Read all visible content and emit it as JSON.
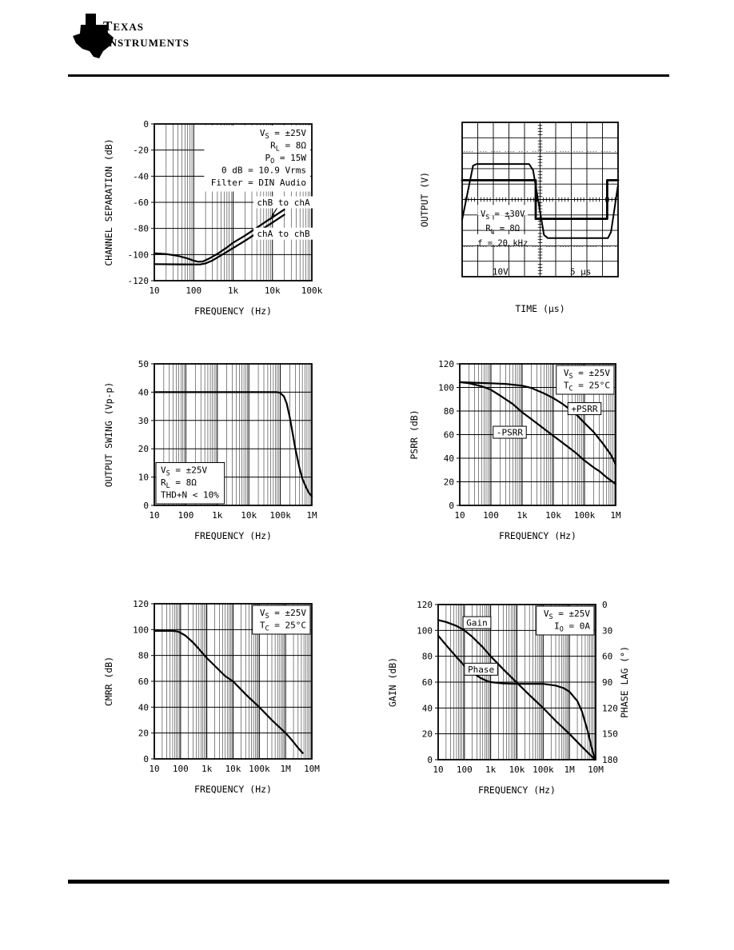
{
  "header": {
    "brand_line1": "TEXAS",
    "brand_line2": "INSTRUMENTS",
    "logo_monogram": "ti"
  },
  "chart_data": [
    {
      "type": "line",
      "x_scale": "log",
      "xlabel": "FREQUENCY (Hz)",
      "ylabel": "CHANNEL SEPARATION (dB)",
      "x_ticks": [
        "10",
        "100",
        "1k",
        "10k",
        "100k"
      ],
      "x_log_min": 1,
      "ylim": [
        -120,
        0
      ],
      "y_ticks": [
        0,
        -20,
        -40,
        -60,
        -80,
        -100,
        -120
      ],
      "annotations": {
        "pos": "top-right",
        "align": "right",
        "boxed": false,
        "lines": [
          "V~S~ = ±25V",
          "R~L~ = 8Ω",
          "P~O~ = 15W",
          "0 dB = 10.9 Vrms",
          "Filter = DIN Audio"
        ]
      },
      "series": [
        {
          "name": "chB to chA",
          "label": {
            "text": "chB to chA",
            "x": 19000,
            "y": -60,
            "boxed": false
          },
          "leader": [
            [
              14000,
              -63
            ],
            [
              9500,
              -71
            ]
          ],
          "points": [
            [
              10,
              -99
            ],
            [
              20,
              -99.6
            ],
            [
              40,
              -101
            ],
            [
              70,
              -103
            ],
            [
              100,
              -104.7
            ],
            [
              130,
              -105.5
            ],
            [
              170,
              -105.3
            ],
            [
              250,
              -103
            ],
            [
              400,
              -99.5
            ],
            [
              700,
              -94.5
            ],
            [
              1000,
              -91
            ],
            [
              2000,
              -85.5
            ],
            [
              4000,
              -79.5
            ],
            [
              7000,
              -74.5
            ],
            [
              10000,
              -71.5
            ],
            [
              15000,
              -68
            ],
            [
              20000,
              -65.5
            ]
          ]
        },
        {
          "name": "chA to chB",
          "label": {
            "text": "chA to chB",
            "x": 19000,
            "y": -84,
            "boxed": false
          },
          "leader": [
            [
              5200,
              -84
            ],
            [
              4200,
              -82.6
            ]
          ],
          "points": [
            [
              10,
              -107.3
            ],
            [
              50,
              -107.5
            ],
            [
              100,
              -107.6
            ],
            [
              150,
              -107.5
            ],
            [
              200,
              -106.8
            ],
            [
              300,
              -104.5
            ],
            [
              500,
              -100.5
            ],
            [
              1000,
              -95
            ],
            [
              2000,
              -89.5
            ],
            [
              4000,
              -83.5
            ],
            [
              7000,
              -78.5
            ],
            [
              10000,
              -75.5
            ],
            [
              15000,
              -72
            ],
            [
              20000,
              -69.5
            ]
          ]
        }
      ]
    },
    {
      "type": "scope",
      "xlabel": "TIME (μs)",
      "ylabel": "OUTPUT (V)",
      "divisions_x": 10,
      "divisions_y": 10,
      "dotted_rows_div": [
        1.9,
        8.05
      ],
      "annotations": {
        "lines": [
          "V~S~ = ±30V",
          "R~L~ = 8Ω",
          "f = 20 kHz"
        ]
      },
      "scale_labels": {
        "volt": "10V",
        "time": "5 μs"
      },
      "traces": [
        {
          "name": "input-square-wave",
          "points": [
            [
              0,
              1.25
            ],
            [
              4.72,
              1.25
            ],
            [
              4.72,
              -1.25
            ],
            [
              9.3,
              -1.25
            ],
            [
              9.3,
              1.25
            ],
            [
              10,
              1.25
            ]
          ]
        },
        {
          "name": "output-waveform",
          "points": [
            [
              0,
              -1.3
            ],
            [
              0.7,
              2.2
            ],
            [
              0.95,
              2.3
            ],
            [
              4.3,
              2.3
            ],
            [
              4.55,
              1.9
            ],
            [
              5.25,
              -2.3
            ],
            [
              5.5,
              -2.5
            ],
            [
              9.35,
              -2.5
            ],
            [
              9.55,
              -2.1
            ],
            [
              10,
              0.95
            ]
          ]
        }
      ]
    },
    {
      "type": "line",
      "x_scale": "log",
      "xlabel": "FREQUENCY (Hz)",
      "ylabel": "OUTPUT SWING (Vp-p)",
      "x_ticks": [
        "10",
        "100",
        "1k",
        "10k",
        "100k",
        "1M"
      ],
      "x_log_min": 1,
      "ylim": [
        0,
        50
      ],
      "y_ticks": [
        50,
        40,
        30,
        20,
        10,
        0
      ],
      "annotations": {
        "pos": "bottom-left",
        "align": "left",
        "boxed": true,
        "lines": [
          "V~S~ = ±25V",
          "R~L~ = 8Ω",
          "THD+N < 10%"
        ]
      },
      "series": [
        {
          "name": "output-swing",
          "points": [
            [
              10,
              40
            ],
            [
              80000,
              40
            ],
            [
              100000,
              39.7
            ],
            [
              130000,
              38.5
            ],
            [
              160000,
              36
            ],
            [
              200000,
              31
            ],
            [
              250000,
              25
            ],
            [
              300000,
              20
            ],
            [
              400000,
              13.5
            ],
            [
              500000,
              9.5
            ],
            [
              650000,
              6.5
            ],
            [
              800000,
              4.5
            ],
            [
              1000000,
              3.2
            ]
          ]
        }
      ]
    },
    {
      "type": "line",
      "x_scale": "log",
      "xlabel": "FREQUENCY (Hz)",
      "ylabel": "PSRR (dB)",
      "x_ticks": [
        "10",
        "100",
        "1k",
        "10k",
        "100k",
        "1M"
      ],
      "x_log_min": 1,
      "ylim": [
        0,
        120
      ],
      "y_ticks": [
        120,
        100,
        80,
        60,
        40,
        20,
        0
      ],
      "annotations": {
        "pos": "top-right",
        "align": "right",
        "boxed": true,
        "lines": [
          "V~S~ = ±25V",
          "T~C~ = 25°C"
        ]
      },
      "series": [
        {
          "name": "+PSRR",
          "label": {
            "text": "+PSRR",
            "x": 100000,
            "y": 82,
            "boxed": true
          },
          "points": [
            [
              10,
              104.5
            ],
            [
              30,
              104
            ],
            [
              100,
              103.5
            ],
            [
              300,
              103
            ],
            [
              1000,
              101.5
            ],
            [
              2000,
              99.5
            ],
            [
              5000,
              95
            ],
            [
              10000,
              91
            ],
            [
              20000,
              86
            ],
            [
              50000,
              78
            ],
            [
              100000,
              70
            ],
            [
              200000,
              62
            ],
            [
              400000,
              52
            ],
            [
              700000,
              43
            ],
            [
              1000000,
              35
            ]
          ]
        },
        {
          "name": "-PSRR",
          "label": {
            "text": "-PSRR",
            "x": 400,
            "y": 62,
            "boxed": true
          },
          "points": [
            [
              10,
              104.5
            ],
            [
              20,
              103.5
            ],
            [
              50,
              101
            ],
            [
              100,
              98
            ],
            [
              200,
              93
            ],
            [
              500,
              86
            ],
            [
              1000,
              79
            ],
            [
              2000,
              73
            ],
            [
              5000,
              65
            ],
            [
              10000,
              59
            ],
            [
              20000,
              53
            ],
            [
              50000,
              45
            ],
            [
              100000,
              38
            ],
            [
              200000,
              32
            ],
            [
              300000,
              29
            ],
            [
              500000,
              24
            ],
            [
              1000000,
              18
            ]
          ]
        }
      ]
    },
    {
      "type": "line",
      "x_scale": "log",
      "xlabel": "FREQUENCY (Hz)",
      "ylabel": "CMRR (dB)",
      "x_ticks": [
        "10",
        "100",
        "1k",
        "10k",
        "100k",
        "1M",
        "10M"
      ],
      "x_log_min": 1,
      "ylim": [
        0,
        120
      ],
      "y_ticks": [
        120,
        100,
        80,
        60,
        40,
        20,
        0
      ],
      "annotations": {
        "pos": "top-right",
        "align": "right",
        "boxed": true,
        "lines": [
          "V~S~ = ±25V",
          "T~C~ = 25°C"
        ]
      },
      "series": [
        {
          "name": "CMRR",
          "points": [
            [
              10,
              99
            ],
            [
              50,
              99
            ],
            [
              80,
              98.5
            ],
            [
              100,
              97.5
            ],
            [
              150,
              95.5
            ],
            [
              300,
              90
            ],
            [
              500,
              85
            ],
            [
              1000,
              78
            ],
            [
              2000,
              72
            ],
            [
              5000,
              64
            ],
            [
              10000,
              60
            ],
            [
              30000,
              50
            ],
            [
              100000,
              40
            ],
            [
              300000,
              30
            ],
            [
              1000000,
              20
            ],
            [
              1300000,
              17.5
            ],
            [
              2000000,
              13
            ],
            [
              3000000,
              8.5
            ],
            [
              4500000,
              4.5
            ]
          ]
        }
      ]
    },
    {
      "type": "line",
      "x_scale": "log",
      "xlabel": "FREQUENCY (Hz)",
      "ylabel": "GAIN (dB)",
      "x_ticks": [
        "10",
        "100",
        "1k",
        "10k",
        "100k",
        "1M",
        "10M"
      ],
      "x_log_min": 1,
      "ylim": [
        0,
        120
      ],
      "y_ticks": [
        120,
        100,
        80,
        60,
        40,
        20,
        0
      ],
      "right_axis": {
        "label": "PHASE LAG (°)",
        "ticks": [
          0,
          30,
          60,
          90,
          120,
          150,
          180
        ],
        "range": [
          0,
          180
        ]
      },
      "annotations": {
        "pos": "top-right",
        "align": "right",
        "boxed": true,
        "lines": [
          "V~S~ = ±25V",
          "I~O~ = 0A"
        ]
      },
      "series": [
        {
          "name": "Gain",
          "label": {
            "text": "Gain",
            "x": 300,
            "y": 106,
            "boxed": true
          },
          "points": [
            [
              10,
              108
            ],
            [
              20,
              106.5
            ],
            [
              50,
              103.5
            ],
            [
              100,
              100
            ],
            [
              200,
              95
            ],
            [
              500,
              87
            ],
            [
              1000,
              80
            ],
            [
              3000,
              70
            ],
            [
              10000,
              59.5
            ],
            [
              30000,
              50
            ],
            [
              100000,
              40
            ],
            [
              300000,
              30
            ],
            [
              1000000,
              20
            ],
            [
              3000000,
              10
            ],
            [
              8000000,
              1.5
            ],
            [
              9000000,
              0
            ]
          ]
        },
        {
          "name": "Phase",
          "axis": "right",
          "label": {
            "text": "Phase",
            "x": 430,
            "y": 70,
            "boxed": true
          },
          "points": [
            [
              10,
              36
            ],
            [
              20,
              47
            ],
            [
              50,
              61
            ],
            [
              100,
              71
            ],
            [
              200,
              79
            ],
            [
              400,
              85
            ],
            [
              700,
              88.5
            ],
            [
              1000,
              90
            ],
            [
              3000,
              91.5
            ],
            [
              10000,
              92
            ],
            [
              100000,
              92
            ],
            [
              300000,
              94
            ],
            [
              600000,
              97
            ],
            [
              1000000,
              101
            ],
            [
              2000000,
              112
            ],
            [
              3000000,
              124
            ],
            [
              5000000,
              147
            ],
            [
              7000000,
              166
            ],
            [
              9500000,
              180
            ]
          ]
        }
      ]
    }
  ]
}
